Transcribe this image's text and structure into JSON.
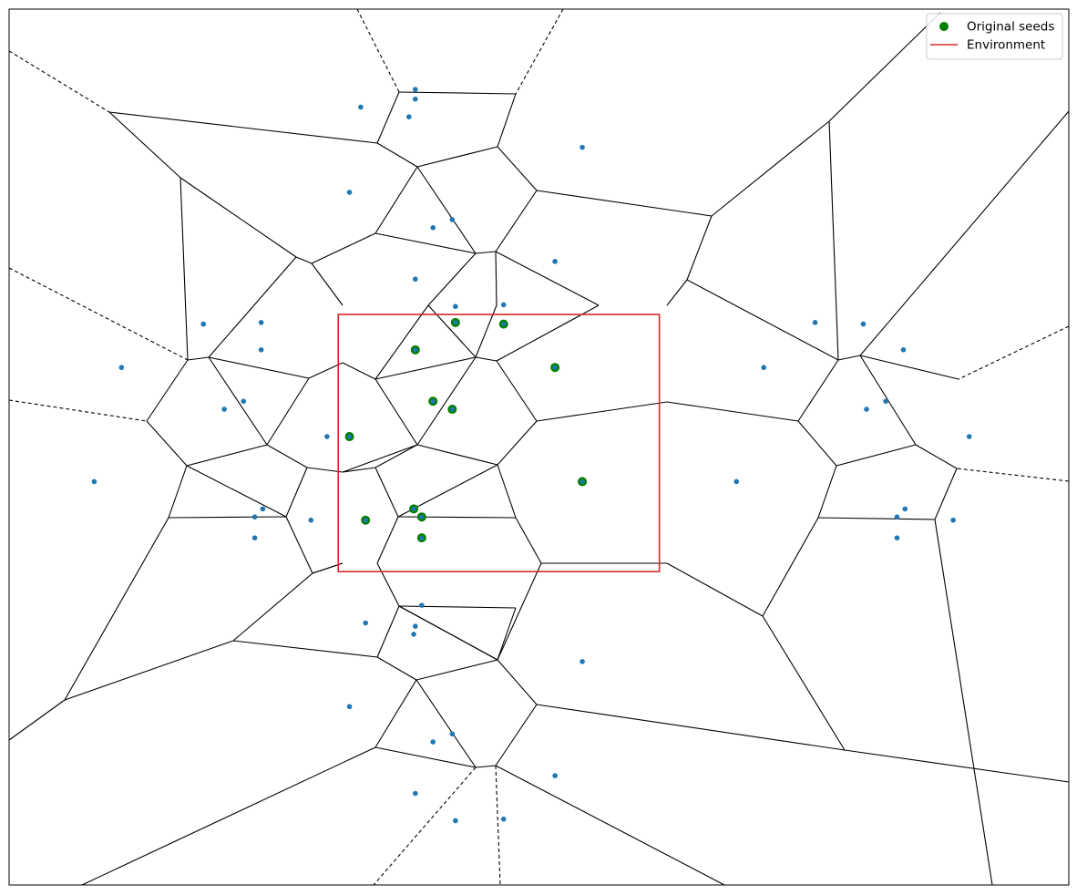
{
  "colors": {
    "original_seed": "#008000",
    "environment": "#d62728",
    "mirrored_point": "#1f77b4",
    "edge": "#000000"
  },
  "legend": {
    "position": "top-right",
    "entries": [
      {
        "label": "Original seeds",
        "marker": "circle",
        "color": "#008000"
      },
      {
        "label": "Environment",
        "marker": "line",
        "color": "#d62728"
      }
    ]
  },
  "chart_data": {
    "type": "scatter",
    "title": "",
    "xlabel": "",
    "ylabel": "",
    "axes_visible": false,
    "xlim": [
      -2.05,
      4.55
    ],
    "ylim": [
      -1.95,
      3.5
    ],
    "environment": {
      "x": [
        0,
        2
      ],
      "y": [
        0,
        1.6
      ]
    },
    "series": [
      {
        "name": "Original seeds",
        "points": [
          [
            0.73,
            1.55
          ],
          [
            1.03,
            1.54
          ],
          [
            0.48,
            1.38
          ],
          [
            1.35,
            1.27
          ],
          [
            0.59,
            1.06
          ],
          [
            0.71,
            1.01
          ],
          [
            0.07,
            0.84
          ],
          [
            1.52,
            0.56
          ],
          [
            0.47,
            0.39
          ],
          [
            0.52,
            0.34
          ],
          [
            0.17,
            0.32
          ],
          [
            0.52,
            0.21
          ]
        ]
      },
      {
        "points": [
          [
            0.48,
            3.0
          ],
          [
            0.48,
            2.94
          ],
          [
            0.14,
            2.89
          ],
          [
            0.44,
            2.83
          ],
          [
            1.52,
            2.64
          ],
          [
            0.07,
            2.36
          ],
          [
            0.71,
            2.19
          ],
          [
            0.59,
            2.14
          ],
          [
            1.35,
            1.93
          ],
          [
            0.48,
            1.82
          ],
          [
            0.73,
            1.65
          ],
          [
            1.03,
            1.66
          ],
          [
            -0.48,
            1.55
          ],
          [
            -0.84,
            1.54
          ],
          [
            -0.48,
            1.38
          ],
          [
            -1.35,
            1.27
          ],
          [
            -0.59,
            1.06
          ],
          [
            -0.71,
            1.01
          ],
          [
            -0.07,
            0.84
          ],
          [
            -1.52,
            0.56
          ],
          [
            -0.47,
            0.39
          ],
          [
            -0.52,
            0.34
          ],
          [
            -0.17,
            0.32
          ],
          [
            -0.52,
            0.21
          ],
          [
            3.27,
            1.54
          ],
          [
            2.97,
            1.55
          ],
          [
            3.52,
            1.38
          ],
          [
            2.65,
            1.27
          ],
          [
            3.41,
            1.06
          ],
          [
            3.29,
            1.01
          ],
          [
            3.93,
            0.84
          ],
          [
            2.48,
            0.56
          ],
          [
            3.53,
            0.39
          ],
          [
            3.48,
            0.34
          ],
          [
            3.83,
            0.32
          ],
          [
            3.48,
            0.21
          ],
          [
            0.52,
            -0.21
          ],
          [
            0.48,
            -0.34
          ],
          [
            0.17,
            -0.32
          ],
          [
            0.47,
            -0.39
          ],
          [
            1.52,
            -0.56
          ],
          [
            0.07,
            -0.84
          ],
          [
            0.59,
            -1.06
          ],
          [
            0.71,
            -1.01
          ],
          [
            1.35,
            -1.27
          ],
          [
            0.48,
            -1.38
          ],
          [
            0.73,
            -1.55
          ],
          [
            1.03,
            -1.54
          ]
        ]
      }
    ]
  }
}
